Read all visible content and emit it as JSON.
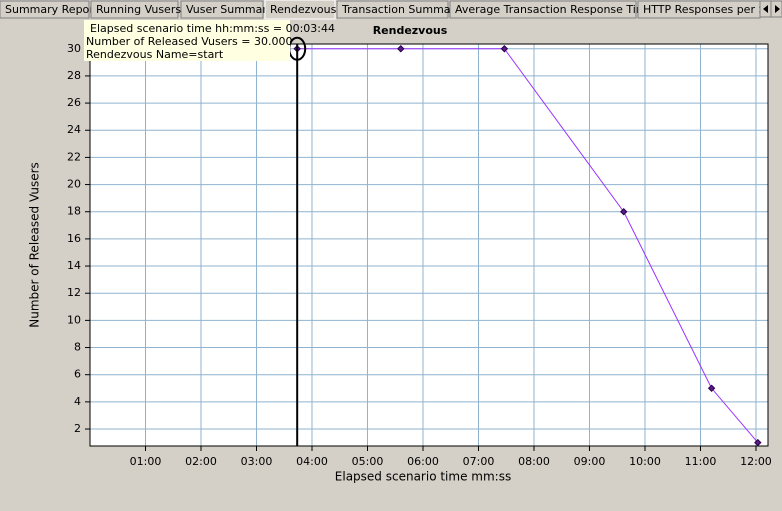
{
  "tabs": [
    "Summary Report",
    "Running Vusers",
    "Vuser Summary",
    "Rendezvous",
    "Transaction Summary",
    "Average Transaction Response Time",
    "HTTP Responses per S"
  ],
  "active_tab": 3,
  "tooltip": {
    "lines": [
      "Elapsed scenario time hh:mm:ss = 00:03:44",
      "Number of Released Vusers = 30.000",
      "Rendezvous Name=start"
    ]
  },
  "chart_data": {
    "type": "line",
    "title": "Rendezvous",
    "x_label": "Elapsed scenario time mm:ss",
    "y_label": "Number of Released Vusers",
    "x": [
      224,
      336,
      448,
      577,
      672,
      722
    ],
    "series": [
      {
        "name": "start",
        "color": "#9933ff",
        "values": [
          30,
          30,
          30,
          18,
          5,
          1
        ]
      }
    ],
    "cursor_x": 224,
    "xlim": [
      0,
      733
    ],
    "ylim": [
      0.75,
      30.35
    ],
    "xticks": [
      {
        "value": 60,
        "label": "01:00"
      },
      {
        "value": 120,
        "label": "02:00"
      },
      {
        "value": 180,
        "label": "03:00"
      },
      {
        "value": 240,
        "label": "04:00"
      },
      {
        "value": 300,
        "label": "05:00"
      },
      {
        "value": 360,
        "label": "06:00"
      },
      {
        "value": 420,
        "label": "07:00"
      },
      {
        "value": 480,
        "label": "08:00"
      },
      {
        "value": 540,
        "label": "09:00"
      },
      {
        "value": 600,
        "label": "10:00"
      },
      {
        "value": 660,
        "label": "11:00"
      },
      {
        "value": 720,
        "label": "12:00"
      }
    ],
    "yticks": [
      2,
      4,
      6,
      8,
      10,
      12,
      14,
      16,
      18,
      20,
      22,
      24,
      26,
      28,
      30
    ],
    "grid": true,
    "grid_color": "#8fb3cf"
  }
}
